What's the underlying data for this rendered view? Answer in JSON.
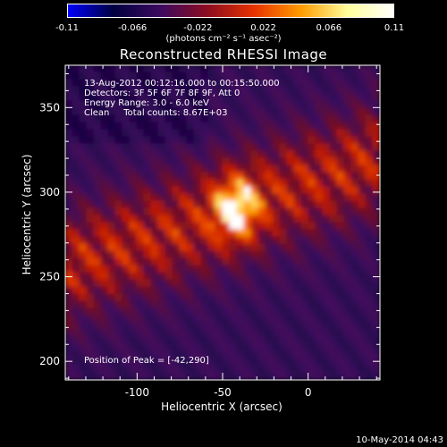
{
  "colorbar": {
    "ticks": [
      "-0.11",
      "-0.066",
      "-0.022",
      "0.022",
      "0.066",
      "0.11"
    ],
    "unit": "(photons cm⁻² s⁻¹ asec⁻²)",
    "colors": [
      "#0000ff",
      "#000040",
      "#3c0a60",
      "#8c0c20",
      "#e63200",
      "#ff9b00",
      "#ffff9b",
      "#ffffff"
    ]
  },
  "chart_data": {
    "type": "heatmap",
    "title": "Reconstructed RHESSI Image",
    "xlabel": "Heliocentric X (arcsec)",
    "ylabel": "Heliocentric Y (arcsec)",
    "xlim": [
      -142,
      42
    ],
    "ylim": [
      189,
      375
    ],
    "xticks": [
      -100,
      -50,
      0
    ],
    "yticks": [
      200,
      250,
      300,
      350
    ],
    "peak": [
      -42,
      290
    ],
    "zlim": [
      -0.11,
      0.11
    ]
  },
  "annotations": {
    "line1": "13-Aug-2012 00:12:16.000 to 00:15:50.000",
    "line2": "Detectors: 3F 5F 6F 7F 8F 9F, Att 0",
    "line3": "Energy Range: 3.0 - 6.0 keV",
    "line4": "Clean     Total counts: 8.67E+03",
    "peak_text": "Position of Peak = [-42,290]"
  },
  "footer": "10-May-2014 04:43"
}
